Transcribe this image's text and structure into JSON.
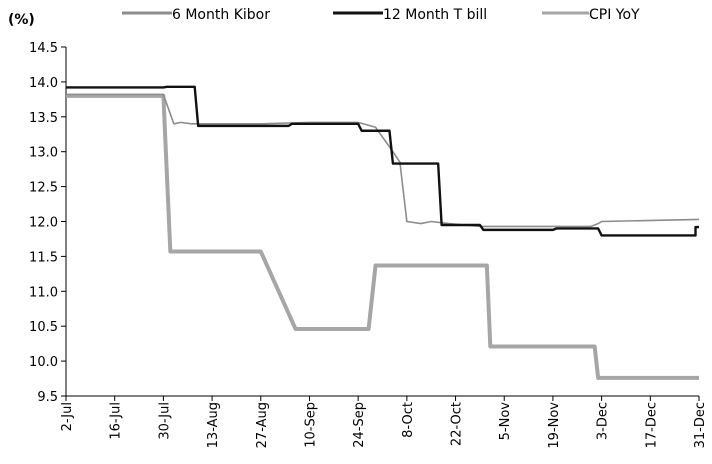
{
  "chart_data": {
    "type": "line",
    "unit_label": "(%)",
    "title": "",
    "xlabel": "",
    "ylabel": "",
    "ylim": [
      9.5,
      14.5
    ],
    "yticks": [
      9.5,
      10.0,
      10.5,
      11.0,
      11.5,
      12.0,
      12.5,
      13.0,
      13.5,
      14.0,
      14.5
    ],
    "x_tick_labels": [
      "2-Jul",
      "16-Jul",
      "30-Jul",
      "13-Aug",
      "27-Aug",
      "10-Sep",
      "24-Sep",
      "8-Oct",
      "22-Oct",
      "5-Nov",
      "19-Nov",
      "3-Dec",
      "17-Dec",
      "31-Dec"
    ],
    "grid": false,
    "legend_position": "top",
    "series": [
      {
        "name": "6 Month Kibor",
        "color": "#8c8c8c",
        "style": "thin",
        "points": [
          [
            "2-Jul",
            13.82
          ],
          [
            "30-Jul",
            13.82
          ],
          [
            "2-Aug",
            13.4
          ],
          [
            "4-Aug",
            13.42
          ],
          [
            "7-Aug",
            13.4
          ],
          [
            "27-Aug",
            13.4
          ],
          [
            "10-Sep",
            13.42
          ],
          [
            "24-Sep",
            13.42
          ],
          [
            "29-Sep",
            13.35
          ],
          [
            "4-Oct",
            13.0
          ],
          [
            "6-Oct",
            12.85
          ],
          [
            "8-Oct",
            12.0
          ],
          [
            "12-Oct",
            11.97
          ],
          [
            "15-Oct",
            12.0
          ],
          [
            "20-Oct",
            11.97
          ],
          [
            "29-Oct",
            11.93
          ],
          [
            "5-Nov",
            11.93
          ],
          [
            "19-Nov",
            11.93
          ],
          [
            "26-Nov",
            11.93
          ],
          [
            "30-Nov",
            11.93
          ],
          [
            "2-Dec",
            11.97
          ],
          [
            "3-Dec",
            12.0
          ],
          [
            "31-Dec",
            12.03
          ]
        ]
      },
      {
        "name": "12 Month T bill",
        "color": "#111111",
        "style": "medium",
        "points": [
          [
            "2-Jul",
            13.92
          ],
          [
            "30-Jul",
            13.92
          ],
          [
            "31-Jul",
            13.93
          ],
          [
            "8-Aug",
            13.93
          ],
          [
            "9-Aug",
            13.37
          ],
          [
            "27-Aug",
            13.37
          ],
          [
            "4-Sep",
            13.37
          ],
          [
            "5-Sep",
            13.4
          ],
          [
            "24-Sep",
            13.4
          ],
          [
            "25-Sep",
            13.3
          ],
          [
            "3-Oct",
            13.3
          ],
          [
            "4-Oct",
            12.83
          ],
          [
            "17-Oct",
            12.83
          ],
          [
            "18-Oct",
            11.95
          ],
          [
            "29-Oct",
            11.95
          ],
          [
            "30-Oct",
            11.88
          ],
          [
            "10-Nov",
            11.88
          ],
          [
            "19-Nov",
            11.88
          ],
          [
            "20-Nov",
            11.9
          ],
          [
            "2-Dec",
            11.9
          ],
          [
            "3-Dec",
            11.8
          ],
          [
            "17-Dec",
            11.8
          ],
          [
            "30-Dec",
            11.8
          ],
          [
            "30-Dec",
            11.92
          ],
          [
            "31-Dec",
            11.92
          ]
        ]
      },
      {
        "name": "CPI YoY",
        "color": "#a6a6a6",
        "style": "thick",
        "points": [
          [
            "2-Jul",
            13.8
          ],
          [
            "30-Jul",
            13.8
          ],
          [
            "1-Aug",
            11.57
          ],
          [
            "27-Aug",
            11.57
          ],
          [
            "6-Sep",
            10.46
          ],
          [
            "27-Sep",
            10.46
          ],
          [
            "29-Sep",
            11.37
          ],
          [
            "31-Oct",
            11.37
          ],
          [
            "1-Nov",
            10.21
          ],
          [
            "1-Dec",
            10.21
          ],
          [
            "2-Dec",
            9.76
          ],
          [
            "31-Dec",
            9.76
          ]
        ]
      }
    ]
  }
}
